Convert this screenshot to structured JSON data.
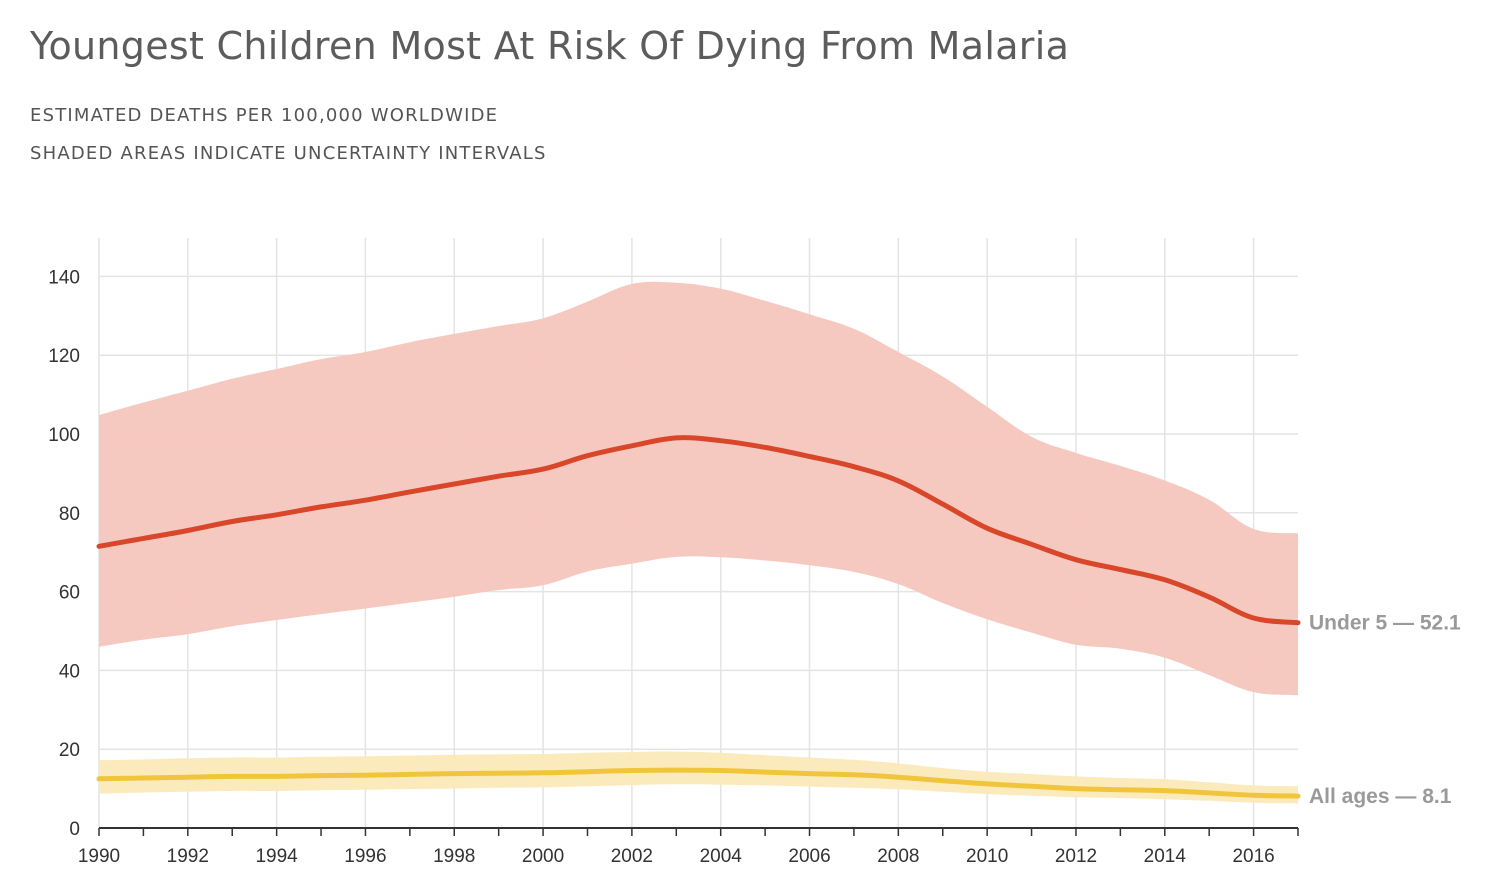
{
  "title": "Youngest Children Most At Risk Of Dying From Malaria",
  "subtitle_lines": [
    "ESTIMATED DEATHS PER 100,000 WORLDWIDE",
    "SHADED AREAS INDICATE UNCERTAINTY INTERVALS"
  ],
  "chart_data": {
    "type": "area",
    "x": [
      1990,
      1991,
      1992,
      1993,
      1994,
      1995,
      1996,
      1997,
      1998,
      1999,
      2000,
      2001,
      2002,
      2003,
      2004,
      2005,
      2006,
      2007,
      2008,
      2009,
      2010,
      2011,
      2012,
      2013,
      2014,
      2015,
      2016,
      2017
    ],
    "x_ticks": [
      1990,
      1992,
      1994,
      1996,
      1998,
      2000,
      2002,
      2004,
      2006,
      2008,
      2010,
      2012,
      2014,
      2016
    ],
    "y_ticks": [
      0,
      20,
      40,
      60,
      80,
      100,
      120,
      140
    ],
    "xlim": [
      1990,
      2017
    ],
    "ylim": [
      0,
      150
    ],
    "grid": true,
    "series": [
      {
        "name": "Under 5",
        "label": "Under 5 — 52.1",
        "color": "#d9472b",
        "band_color": "#f5c6bd",
        "values": [
          71.5,
          73.5,
          75.5,
          77.8,
          79.5,
          81.5,
          83.2,
          85.3,
          87.3,
          89.3,
          91.1,
          94.5,
          97.0,
          99.0,
          98.3,
          96.6,
          94.3,
          91.7,
          88.1,
          82.2,
          76.1,
          72.0,
          68.1,
          65.6,
          63.0,
          58.6,
          53.3,
          52.1
        ],
        "lower": [
          46.0,
          47.8,
          49.2,
          51.2,
          52.8,
          54.3,
          55.7,
          57.2,
          58.7,
          60.4,
          61.6,
          65.1,
          67.1,
          68.8,
          68.7,
          67.9,
          66.7,
          65.0,
          61.9,
          57.1,
          53.0,
          49.6,
          46.5,
          45.5,
          43.2,
          38.8,
          34.5,
          33.7
        ],
        "upper": [
          104.8,
          108.0,
          111.0,
          114.0,
          116.5,
          119.0,
          120.8,
          123.3,
          125.4,
          127.4,
          129.4,
          133.6,
          138.1,
          138.4,
          136.9,
          133.8,
          130.4,
          126.7,
          120.8,
          114.6,
          106.9,
          99.3,
          95.2,
          91.9,
          88.2,
          83.3,
          75.9,
          74.8
        ]
      },
      {
        "name": "All ages",
        "label": "All ages — 8.1",
        "color": "#f0c53b",
        "band_color": "#fbeab8",
        "values": [
          12.5,
          12.7,
          12.9,
          13.1,
          13.1,
          13.3,
          13.4,
          13.6,
          13.8,
          13.9,
          14.0,
          14.3,
          14.6,
          14.7,
          14.6,
          14.2,
          13.8,
          13.5,
          12.9,
          12.0,
          11.2,
          10.6,
          10.0,
          9.7,
          9.5,
          8.9,
          8.3,
          8.1
        ],
        "lower": [
          8.7,
          9.0,
          9.2,
          9.4,
          9.4,
          9.6,
          9.7,
          9.9,
          10.0,
          10.2,
          10.3,
          10.6,
          10.9,
          11.1,
          11.0,
          10.8,
          10.5,
          10.2,
          9.8,
          9.2,
          8.6,
          8.2,
          7.8,
          7.6,
          7.3,
          6.9,
          6.4,
          6.2
        ],
        "upper": [
          17.2,
          17.4,
          17.7,
          17.9,
          17.9,
          18.1,
          18.2,
          18.4,
          18.6,
          18.7,
          18.8,
          19.1,
          19.3,
          19.4,
          19.1,
          18.5,
          17.9,
          17.3,
          16.4,
          15.2,
          14.3,
          13.7,
          13.1,
          12.7,
          12.4,
          11.6,
          10.8,
          10.6
        ]
      }
    ]
  }
}
